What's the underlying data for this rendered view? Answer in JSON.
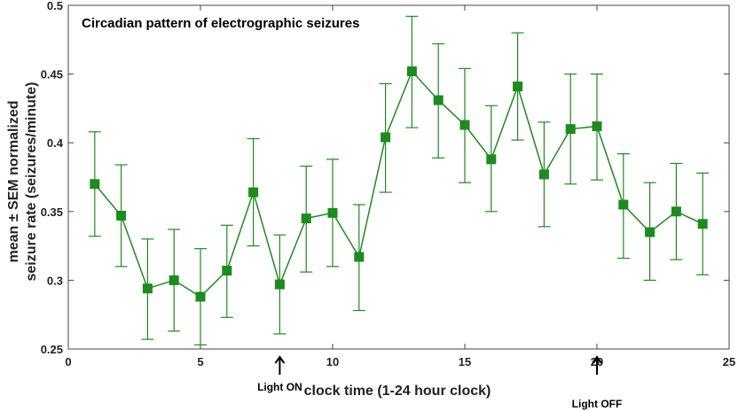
{
  "chart_data": {
    "type": "line",
    "title": "Circadian pattern of electrographic seizures",
    "xlabel": "clock time (1-24 hour clock)",
    "ylabel": [
      "mean ± SEM normalized",
      "seizure rate (seizures/minute)"
    ],
    "xlim": [
      0,
      25
    ],
    "ylim": [
      0.25,
      0.5
    ],
    "xticks": [
      0,
      5,
      10,
      15,
      20,
      25
    ],
    "yticks": [
      0.25,
      0.3,
      0.35,
      0.4,
      0.45,
      0.5
    ],
    "xtick_labels": [
      "0",
      "5",
      "10",
      "15",
      "20",
      "25"
    ],
    "ytick_labels": [
      "0.25",
      "0.3",
      "0.35",
      "0.4",
      "0.45",
      "0.5"
    ],
    "grid": false,
    "legend": "none",
    "series": [
      {
        "color": "#1f8a1f",
        "marker": "square",
        "x": [
          1,
          2,
          3,
          4,
          5,
          6,
          7,
          8,
          9,
          10,
          11,
          12,
          13,
          14,
          15,
          16,
          17,
          18,
          19,
          20,
          21,
          22,
          23,
          24
        ],
        "y": [
          0.37,
          0.347,
          0.294,
          0.3,
          0.288,
          0.307,
          0.364,
          0.297,
          0.345,
          0.349,
          0.317,
          0.404,
          0.452,
          0.431,
          0.413,
          0.388,
          0.441,
          0.377,
          0.41,
          0.412,
          0.355,
          0.335,
          0.35,
          0.341
        ],
        "err_upper": [
          0.408,
          0.384,
          0.33,
          0.337,
          0.323,
          0.34,
          0.403,
          0.333,
          0.383,
          0.388,
          0.355,
          0.443,
          0.492,
          0.472,
          0.454,
          0.427,
          0.48,
          0.415,
          0.45,
          0.45,
          0.392,
          0.371,
          0.385,
          0.378
        ],
        "err_lower": [
          0.332,
          0.31,
          0.257,
          0.263,
          0.253,
          0.273,
          0.325,
          0.261,
          0.306,
          0.31,
          0.278,
          0.364,
          0.411,
          0.389,
          0.371,
          0.35,
          0.402,
          0.339,
          0.37,
          0.373,
          0.316,
          0.3,
          0.315,
          0.304
        ]
      }
    ],
    "annotations": [
      {
        "label": "Light ON",
        "x": 8
      },
      {
        "label": "Light OFF",
        "x": 20
      }
    ]
  }
}
